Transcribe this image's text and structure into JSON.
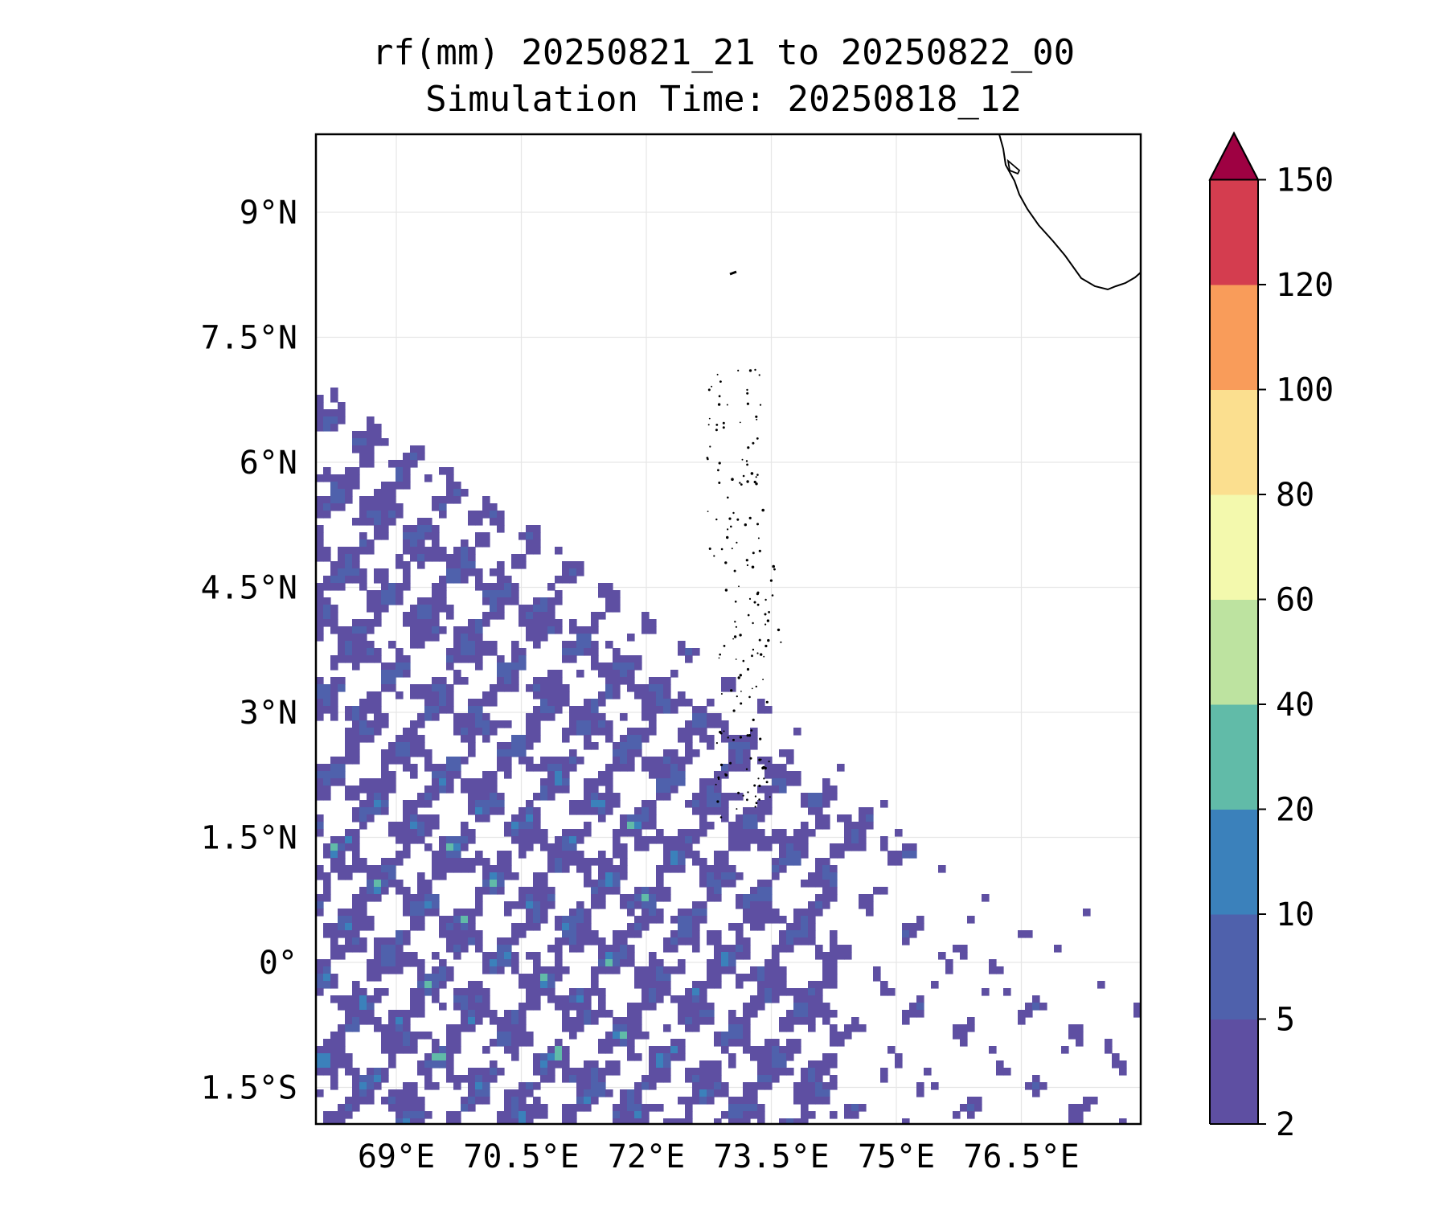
{
  "title": {
    "line1": "rf(mm) 20250821_21 to 20250822_00",
    "line2": "Simulation Time: 20250818_12"
  },
  "map": {
    "lat_ticks": [
      "9°N",
      "7.5°N",
      "6°N",
      "4.5°N",
      "3°N",
      "1.5°N",
      "0°",
      "1.5°S"
    ],
    "lon_ticks": [
      "69°E",
      "70.5°E",
      "72°E",
      "73.5°E",
      "75°E",
      "76.5°E"
    ],
    "lat_values": [
      9,
      7.5,
      6,
      4.5,
      3,
      1.5,
      0,
      -1.5
    ],
    "lon_values": [
      69,
      70.5,
      72,
      73.5,
      75,
      76.5
    ],
    "lon_range": [
      68.0,
      77.9
    ],
    "lat_range": [
      -1.9,
      10.0
    ]
  },
  "colorbar": {
    "labels": [
      "2",
      "5",
      "10",
      "20",
      "40",
      "60",
      "80",
      "100",
      "120",
      "150"
    ],
    "colors": [
      "#5e4fa2",
      "#4f61ac",
      "#3b81bb",
      "#61bba8",
      "#bde3a0",
      "#f3f9ad",
      "#fbdf8f",
      "#f99c5a",
      "#d43d4f",
      "#9e0142"
    ],
    "extend": "max"
  }
}
